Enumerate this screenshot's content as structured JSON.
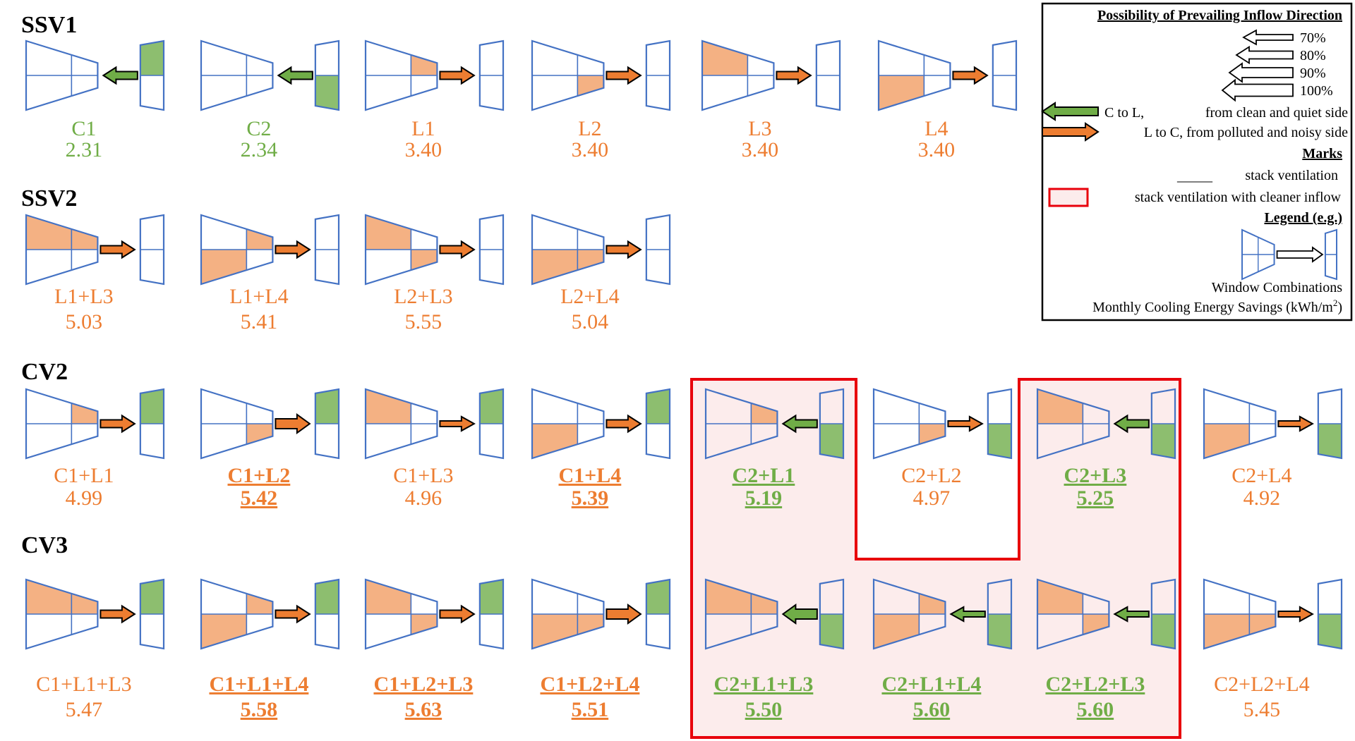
{
  "colors": {
    "orange": "#ED7D31",
    "green": "#70AD47",
    "fill_orange": "#F4B183",
    "fill_green": "#8DBE6F",
    "outline_blue": "#4472C4",
    "highlight_red": "#E8000B",
    "highlight_fill": "#FCECEC"
  },
  "rows": [
    {
      "title": "SSV1",
      "items": [
        {
          "label": "C1",
          "value": "2.31",
          "color": "green",
          "bold": false,
          "arrow": "c-to-l",
          "arrow_strength": "80%",
          "left_fill": [],
          "right_fill": "top"
        },
        {
          "label": "C2",
          "value": "2.34",
          "color": "green",
          "bold": false,
          "arrow": "c-to-l",
          "arrow_strength": "80%",
          "left_fill": [],
          "right_fill": "bottom"
        },
        {
          "label": "L1",
          "value": "3.40",
          "color": "orange",
          "bold": false,
          "arrow": "l-to-c",
          "arrow_strength": "80%",
          "left_fill": [
            "TR"
          ],
          "right_fill": "none"
        },
        {
          "label": "L2",
          "value": "3.40",
          "color": "orange",
          "bold": false,
          "arrow": "l-to-c",
          "arrow_strength": "80%",
          "left_fill": [
            "BR"
          ],
          "right_fill": "none"
        },
        {
          "label": "L3",
          "value": "3.40",
          "color": "orange",
          "bold": false,
          "arrow": "l-to-c",
          "arrow_strength": "80%",
          "left_fill": [
            "TL"
          ],
          "right_fill": "none"
        },
        {
          "label": "L4",
          "value": "3.40",
          "color": "orange",
          "bold": false,
          "arrow": "l-to-c",
          "arrow_strength": "80%",
          "left_fill": [
            "BL"
          ],
          "right_fill": "none"
        }
      ]
    },
    {
      "title": "SSV2",
      "items": [
        {
          "label": "L1+L3",
          "value": "5.03",
          "color": "orange",
          "bold": false,
          "arrow": "l-to-c",
          "arrow_strength": "80%",
          "left_fill": [
            "TL",
            "TR"
          ],
          "right_fill": "none"
        },
        {
          "label": "L1+L4",
          "value": "5.41",
          "color": "orange",
          "bold": false,
          "arrow": "l-to-c",
          "arrow_strength": "80%",
          "left_fill": [
            "TR",
            "BL"
          ],
          "right_fill": "none"
        },
        {
          "label": "L2+L3",
          "value": "5.55",
          "color": "orange",
          "bold": false,
          "arrow": "l-to-c",
          "arrow_strength": "80%",
          "left_fill": [
            "TL",
            "BR"
          ],
          "right_fill": "none"
        },
        {
          "label": "L2+L4",
          "value": "5.04",
          "color": "orange",
          "bold": false,
          "arrow": "l-to-c",
          "arrow_strength": "80%",
          "left_fill": [
            "BL",
            "BR"
          ],
          "right_fill": "none"
        }
      ]
    },
    {
      "title": "CV2",
      "items": [
        {
          "label": "C1+L1",
          "value": "4.99",
          "color": "orange",
          "bold": false,
          "arrow": "l-to-c",
          "arrow_strength": "80%",
          "left_fill": [
            "TR"
          ],
          "right_fill": "top"
        },
        {
          "label": "C1+L2",
          "value": "5.42",
          "color": "orange",
          "bold": true,
          "arrow": "l-to-c",
          "arrow_strength": "90%",
          "left_fill": [
            "BR"
          ],
          "right_fill": "top"
        },
        {
          "label": "C1+L3",
          "value": "4.96",
          "color": "orange",
          "bold": false,
          "arrow": "l-to-c",
          "arrow_strength": "70%",
          "left_fill": [
            "TL"
          ],
          "right_fill": "top"
        },
        {
          "label": "C1+L4",
          "value": "5.39",
          "color": "orange",
          "bold": true,
          "arrow": "l-to-c",
          "arrow_strength": "80%",
          "left_fill": [
            "BL"
          ],
          "right_fill": "top"
        },
        {
          "label": "C2+L1",
          "value": "5.19",
          "color": "green",
          "bold": true,
          "arrow": "c-to-l",
          "arrow_strength": "80%",
          "left_fill": [
            "TR"
          ],
          "right_fill": "bottom"
        },
        {
          "label": "C2+L2",
          "value": "4.97",
          "color": "orange",
          "bold": false,
          "arrow": "l-to-c",
          "arrow_strength": "70%",
          "left_fill": [
            "BR"
          ],
          "right_fill": "bottom"
        },
        {
          "label": "C2+L3",
          "value": "5.25",
          "color": "green",
          "bold": true,
          "arrow": "c-to-l",
          "arrow_strength": "80%",
          "left_fill": [
            "TL"
          ],
          "right_fill": "bottom"
        },
        {
          "label": "C2+L4",
          "value": "4.92",
          "color": "orange",
          "bold": false,
          "arrow": "l-to-c",
          "arrow_strength": "70%",
          "left_fill": [
            "BL"
          ],
          "right_fill": "bottom"
        }
      ]
    },
    {
      "title": "CV3",
      "items": [
        {
          "label": "C1+L1+L3",
          "value": "5.47",
          "color": "orange",
          "bold": false,
          "arrow": "l-to-c",
          "arrow_strength": "80%",
          "left_fill": [
            "TL",
            "TR"
          ],
          "right_fill": "top"
        },
        {
          "label": "C1+L1+L4",
          "value": "5.58",
          "color": "orange",
          "bold": true,
          "arrow": "l-to-c",
          "arrow_strength": "80%",
          "left_fill": [
            "TR",
            "BL"
          ],
          "right_fill": "top"
        },
        {
          "label": "C1+L2+L3",
          "value": "5.63",
          "color": "orange",
          "bold": true,
          "arrow": "l-to-c",
          "arrow_strength": "80%",
          "left_fill": [
            "TL",
            "BR"
          ],
          "right_fill": "top"
        },
        {
          "label": "C1+L2+L4",
          "value": "5.51",
          "color": "orange",
          "bold": true,
          "arrow": "l-to-c",
          "arrow_strength": "90%",
          "left_fill": [
            "BL",
            "BR"
          ],
          "right_fill": "top"
        },
        {
          "label": "C2+L1+L3",
          "value": "5.50",
          "color": "green",
          "bold": true,
          "arrow": "c-to-l",
          "arrow_strength": "90%",
          "left_fill": [
            "TL",
            "TR"
          ],
          "right_fill": "bottom"
        },
        {
          "label": "C2+L1+L4",
          "value": "5.60",
          "color": "green",
          "bold": true,
          "arrow": "c-to-l",
          "arrow_strength": "70%",
          "left_fill": [
            "TR",
            "BL"
          ],
          "right_fill": "bottom"
        },
        {
          "label": "C2+L2+L3",
          "value": "5.60",
          "color": "green",
          "bold": true,
          "arrow": "c-to-l",
          "arrow_strength": "70%",
          "left_fill": [
            "TL",
            "BR"
          ],
          "right_fill": "bottom"
        },
        {
          "label": "C2+L2+L4",
          "value": "5.45",
          "color": "orange",
          "bold": false,
          "arrow": "l-to-c",
          "arrow_strength": "70%",
          "left_fill": [
            "BL",
            "BR"
          ],
          "right_fill": "bottom"
        }
      ]
    }
  ],
  "legend": {
    "title": "Possibility of Prevailing Inflow Direction",
    "possibility_levels": [
      "70%",
      "80%",
      "90%",
      "100%"
    ],
    "c_to_l_label": "C to L,",
    "c_to_l_desc": "from clean and quiet side",
    "l_to_c_label": "L to C, from polluted and noisy side",
    "marks_heading": "Marks",
    "underline_mark": "_____",
    "stack_ventilation_label": "stack ventilation",
    "cleaner_inflow_label": "stack ventilation with cleaner inflow",
    "example_heading": "Legend (e.g.)",
    "window_combinations_label": "Window Combinations",
    "energy_savings_label": "Monthly Cooling Energy Savings (kWh/m",
    "energy_savings_sup": "2",
    "energy_savings_close": ")"
  }
}
